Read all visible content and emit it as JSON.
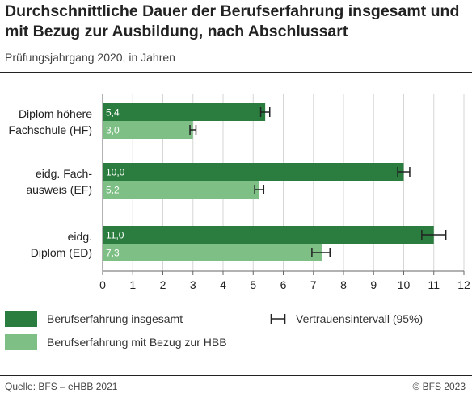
{
  "title": "Durchschnittliche Dauer der Berufserfahrung insgesamt und mit Bezug zur Ausbildung, nach Abschlussart",
  "subtitle": "Prüfungsjahrgang 2020, in Jahren",
  "source": "Quelle: BFS – eHBB 2021",
  "copyright": "© BFS 2023",
  "colors": {
    "dark": "#2a7d3e",
    "light": "#7dbf85",
    "grid": "#d6d6d6",
    "axis": "#666666"
  },
  "legend": {
    "total": "Berufserfahrung insgesamt",
    "related": "Berufserfahrung mit Bezug zur HBB",
    "ci": "Vertrauensintervall (95%)"
  },
  "chart_data": {
    "type": "bar",
    "orientation": "horizontal",
    "categories": [
      [
        "Diplom höhere",
        "Fachschule (HF)"
      ],
      [
        "eidg. Fach-",
        "ausweis (EF)"
      ],
      [
        "eidg.",
        "Diplom (ED)"
      ]
    ],
    "series": [
      {
        "name": "Berufserfahrung insgesamt",
        "values": [
          5.4,
          10.0,
          11.0
        ],
        "labels": [
          "5,4",
          "10,0",
          "11,0"
        ],
        "ci_low": [
          5.25,
          9.8,
          10.6
        ],
        "ci_high": [
          5.55,
          10.2,
          11.4
        ]
      },
      {
        "name": "Berufserfahrung mit Bezug zur HBB",
        "values": [
          3.0,
          5.2,
          7.3
        ],
        "labels": [
          "3,0",
          "5,2",
          "7,3"
        ],
        "ci_low": [
          2.9,
          5.05,
          6.95
        ],
        "ci_high": [
          3.1,
          5.35,
          7.55
        ]
      }
    ],
    "xlim": [
      0,
      12
    ],
    "xticks": [
      0,
      1,
      2,
      3,
      4,
      5,
      6,
      7,
      8,
      9,
      10,
      11,
      12
    ],
    "grid": true,
    "legend_position": "bottom"
  }
}
